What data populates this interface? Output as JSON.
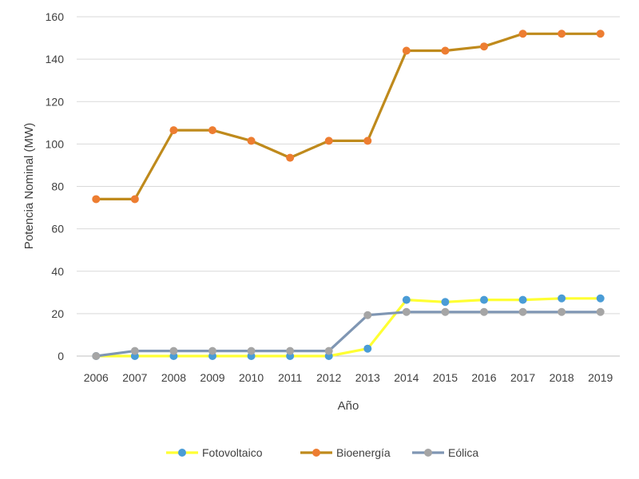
{
  "chart_data": {
    "type": "line",
    "title": "",
    "xlabel": "Año",
    "ylabel": "Potencia Nominal (MW)",
    "ylim": [
      0,
      160
    ],
    "yticks": [
      0,
      20,
      40,
      60,
      80,
      100,
      120,
      140,
      160
    ],
    "grid": true,
    "legend_position": "bottom",
    "categories": [
      "2006",
      "2007",
      "2008",
      "2009",
      "2010",
      "2011",
      "2012",
      "2013",
      "2014",
      "2015",
      "2016",
      "2017",
      "2018",
      "2019"
    ],
    "series": [
      {
        "name": "Fotovoltaico",
        "line_color": "#ffff33",
        "marker_color": "#4a9cd6",
        "values": [
          0,
          0,
          0,
          0,
          0,
          0,
          0,
          3.5,
          26.5,
          25.5,
          26.5,
          26.5,
          27.2,
          27.2
        ]
      },
      {
        "name": "Bioenergía",
        "line_color": "#bf8a1c",
        "marker_color": "#ed7d31",
        "values": [
          74,
          74,
          106.5,
          106.5,
          101.5,
          93.5,
          101.5,
          101.5,
          144,
          144,
          146,
          152,
          152,
          152
        ]
      },
      {
        "name": "Eólica",
        "line_color": "#7f96b3",
        "marker_color": "#a5a5a5",
        "values": [
          0,
          2.4,
          2.4,
          2.4,
          2.4,
          2.4,
          2.4,
          19.3,
          20.8,
          20.8,
          20.8,
          20.8,
          20.8,
          20.8
        ]
      }
    ]
  }
}
